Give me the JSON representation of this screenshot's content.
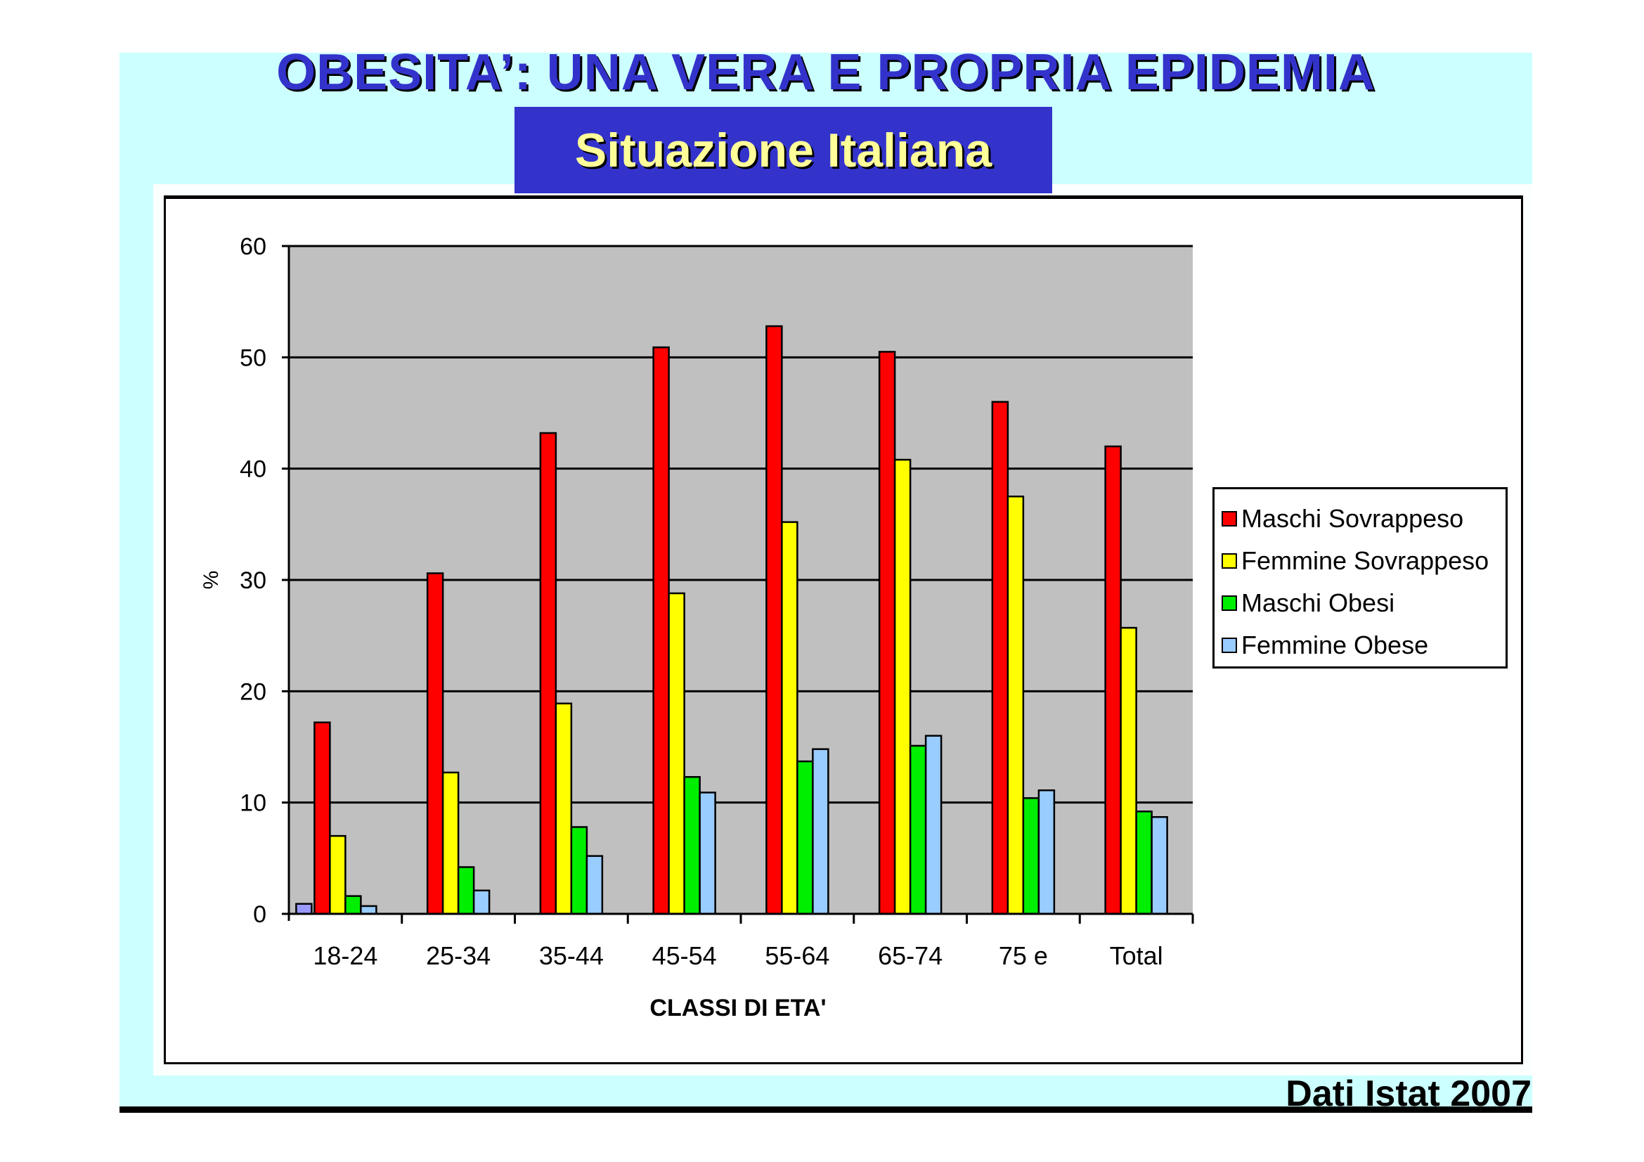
{
  "slide": {
    "title": "OBESITA’: UNA VERA E PROPRIA EPIDEMIA",
    "subtitle": "Situazione Italiana",
    "source": "Dati Istat 2007"
  },
  "chart_data": {
    "type": "bar",
    "title": "",
    "xlabel": "CLASSI DI ETA'",
    "ylabel": "%",
    "ylim": [
      0,
      60
    ],
    "yticks": [
      "0",
      "10",
      "20",
      "30",
      "40",
      "50",
      "60"
    ],
    "grid": true,
    "legend_position": "right",
    "categories": [
      "18-24",
      "25-34",
      "35-44",
      "45-54",
      "55-64",
      "65-74",
      "75 e",
      "Total"
    ],
    "series": [
      {
        "name": "",
        "color": "#9999ff",
        "values": [
          0.9,
          null,
          null,
          null,
          null,
          null,
          null,
          null
        ]
      },
      {
        "name": "Maschi Sovrappeso",
        "color": "#ff0000",
        "values": [
          17.2,
          30.6,
          43.2,
          50.9,
          52.8,
          50.5,
          46.0,
          42.0
        ]
      },
      {
        "name": "Femmine Sovrappeso",
        "color": "#ffff00",
        "values": [
          7.0,
          12.7,
          18.9,
          28.8,
          35.2,
          40.8,
          37.5,
          25.7
        ]
      },
      {
        "name": "Maschi Obesi",
        "color": "#00ee00",
        "values": [
          1.6,
          4.2,
          7.8,
          12.3,
          13.7,
          15.1,
          10.4,
          9.2
        ]
      },
      {
        "name": "Femmine Obese",
        "color": "#99ccff",
        "values": [
          0.7,
          2.1,
          5.2,
          10.9,
          14.8,
          16.0,
          11.1,
          8.7
        ]
      }
    ]
  }
}
